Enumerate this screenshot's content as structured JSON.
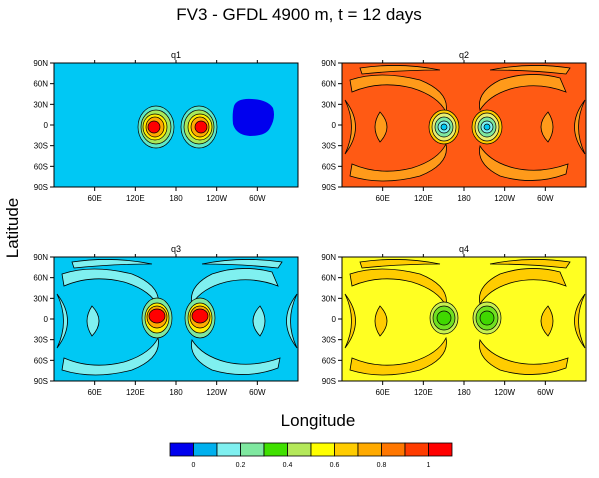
{
  "title": "FV3 - GFDL 4900 m, t = 12 days",
  "ylabel": "Latitude",
  "xlabel": "Longitude",
  "colors": {
    "levels": [
      "#0000ee",
      "#00b0ee",
      "#7ff0f0",
      "#7fe8a0",
      "#40e000",
      "#b4e85a",
      "#ffff00",
      "#ffcc00",
      "#ffaa00",
      "#ff7700",
      "#ff3c00",
      "#ff0000"
    ]
  },
  "chart_data": [
    {
      "type": "heatmap",
      "title": "q1",
      "x_ticks": [
        "60E",
        "120E",
        "180",
        "120W",
        "60W"
      ],
      "y_ticks": [
        "90N",
        "60N",
        "30N",
        "0",
        "30S",
        "60S",
        "90S"
      ],
      "background_level": 1,
      "features": "two cosine bells near 150E and 200E (max ~1.0), slotted cylinder near 290E (value 0)"
    },
    {
      "type": "heatmap",
      "title": "q2",
      "x_ticks": [
        "60E",
        "120E",
        "180",
        "120W",
        "60W"
      ],
      "y_ticks": [
        "90N",
        "60N",
        "30N",
        "0",
        "30S",
        "60S",
        "90S"
      ],
      "background_level": 9,
      "features": "two bells with minimum ~0.1 near 150E and 200E, filament bands"
    },
    {
      "type": "heatmap",
      "title": "q3",
      "x_ticks": [
        "60E",
        "120E",
        "180",
        "120W",
        "60W"
      ],
      "y_ticks": [
        "90N",
        "60N",
        "30N",
        "0",
        "30S",
        "60S",
        "90S"
      ],
      "background_level": 1,
      "features": "two bells with maximum ~1.0 near 150E and 200E, filament bands"
    },
    {
      "type": "heatmap",
      "title": "q4",
      "x_ticks": [
        "60E",
        "120E",
        "180",
        "120W",
        "60W"
      ],
      "y_ticks": [
        "90N",
        "60N",
        "30N",
        "0",
        "30S",
        "60S",
        "90S"
      ],
      "background_level": 6,
      "features": "two bells with minimum ~0.4 near 150E and 200E, filament bands"
    }
  ],
  "colorbar": {
    "labels": [
      "0",
      "0.2",
      "0.4",
      "0.6",
      "0.8",
      "1"
    ]
  }
}
